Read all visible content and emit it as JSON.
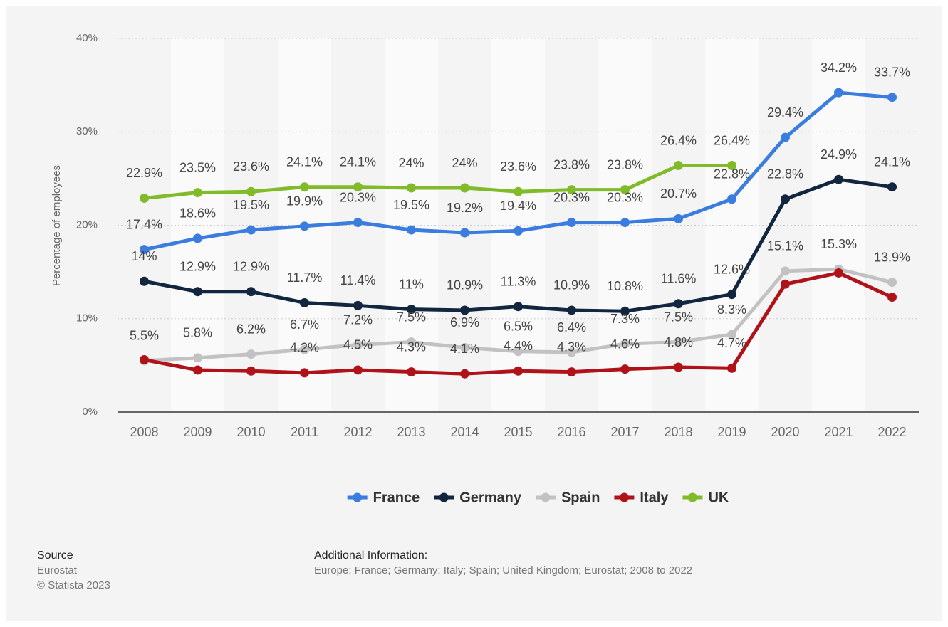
{
  "chart_data": {
    "type": "line",
    "y_label": "Percentage of employees",
    "categories": [
      "2008",
      "2009",
      "2010",
      "2011",
      "2012",
      "2013",
      "2014",
      "2015",
      "2016",
      "2017",
      "2018",
      "2019",
      "2020",
      "2021",
      "2022"
    ],
    "ylim": [
      0,
      40
    ],
    "yticks": [
      {
        "value": 0,
        "label": "0%"
      },
      {
        "value": 10,
        "label": "10%"
      },
      {
        "value": 20,
        "label": "20%"
      },
      {
        "value": 30,
        "label": "30%"
      },
      {
        "value": 40,
        "label": "40%"
      }
    ],
    "grid": true,
    "legend": "bottom",
    "series": [
      {
        "name": "France",
        "color": "#3a7ddf",
        "values": [
          17.4,
          18.6,
          19.5,
          19.9,
          20.3,
          19.5,
          19.2,
          19.4,
          20.3,
          20.3,
          20.7,
          22.8,
          29.4,
          34.2,
          33.7
        ],
        "value_labels": [
          "17.4%",
          "18.6%",
          "19.5%",
          "19.9%",
          "20.3%",
          "19.5%",
          "19.2%",
          "19.4%",
          "20.3%",
          "20.3%",
          "20.7%",
          "22.8%",
          "29.4%",
          "34.2%",
          "33.7%"
        ]
      },
      {
        "name": "Germany",
        "color": "#12263f",
        "values": [
          14,
          12.9,
          12.9,
          11.7,
          11.4,
          11,
          10.9,
          11.3,
          10.9,
          10.8,
          11.6,
          12.6,
          22.8,
          24.9,
          24.1
        ],
        "value_labels": [
          "14%",
          "12.9%",
          "12.9%",
          "11.7%",
          "11.4%",
          "11%",
          "10.9%",
          "11.3%",
          "10.9%",
          "10.8%",
          "11.6%",
          "12.6%",
          "22.8%",
          "24.9%",
          "24.1%"
        ]
      },
      {
        "name": "Spain",
        "color": "#c2c2c2",
        "values": [
          5.5,
          5.8,
          6.2,
          6.7,
          7.2,
          7.5,
          6.9,
          6.5,
          6.4,
          7.3,
          7.5,
          8.3,
          15.1,
          15.3,
          13.9
        ],
        "value_labels": [
          "5.5%",
          "5.8%",
          "6.2%",
          "6.7%",
          "7.2%",
          "7.5%",
          "6.9%",
          "6.5%",
          "6.4%",
          "7.3%",
          "7.5%",
          "8.3%",
          "15.1%",
          "15.3%",
          "13.9%"
        ]
      },
      {
        "name": "Italy",
        "color": "#b0121a",
        "values": [
          5.6,
          4.5,
          4.4,
          4.2,
          4.5,
          4.3,
          4.1,
          4.4,
          4.3,
          4.6,
          4.8,
          4.7,
          13.7,
          14.9,
          12.3
        ],
        "value_labels": [
          null,
          null,
          null,
          "4.2%",
          "4.5%",
          "4.3%",
          "4.1%",
          "4.4%",
          "4.3%",
          "4.6%",
          "4.8%",
          "4.7%",
          null,
          null,
          null
        ]
      },
      {
        "name": "UK",
        "color": "#82bb2a",
        "values": [
          22.9,
          23.5,
          23.6,
          24.1,
          24.1,
          24,
          24,
          23.6,
          23.8,
          23.8,
          26.4,
          26.4,
          null,
          null,
          null
        ],
        "value_labels": [
          "22.9%",
          "23.5%",
          "23.6%",
          "24.1%",
          "24.1%",
          "24%",
          "24%",
          "23.6%",
          "23.8%",
          "23.8%",
          "26.4%",
          "26.4%",
          null,
          null,
          null
        ]
      }
    ],
    "source_label": "Source",
    "source": [
      "Eurostat",
      "© Statista 2023"
    ],
    "additional_info_label": "Additional Information:",
    "additional_info": "Europe; France; Germany; Italy; Spain; United Kingdom; Eurostat; 2008 to 2022"
  }
}
